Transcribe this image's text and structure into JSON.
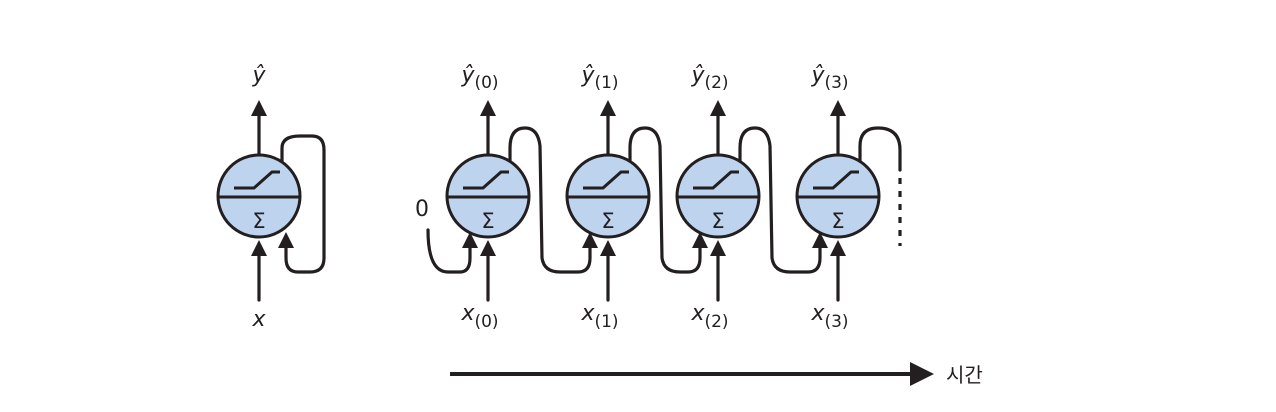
{
  "folded": {
    "output_label": "ŷ",
    "input_label": "x",
    "sum_symbol": "Σ"
  },
  "unrolled": {
    "initial_state": "0",
    "cells": [
      {
        "output_label": "ŷ",
        "output_index": "(0)",
        "input_label": "x",
        "input_index": "(0)",
        "sum_symbol": "Σ"
      },
      {
        "output_label": "ŷ",
        "output_index": "(1)",
        "input_label": "x",
        "input_index": "(1)",
        "sum_symbol": "Σ"
      },
      {
        "output_label": "ŷ",
        "output_index": "(2)",
        "input_label": "x",
        "input_index": "(2)",
        "sum_symbol": "Σ"
      },
      {
        "output_label": "ŷ",
        "output_index": "(3)",
        "input_label": "x",
        "input_index": "(3)",
        "sum_symbol": "Σ"
      }
    ]
  },
  "time_axis": {
    "label": "시간"
  },
  "colors": {
    "neuron_fill": "#bdd3ee",
    "stroke": "#231f20"
  }
}
